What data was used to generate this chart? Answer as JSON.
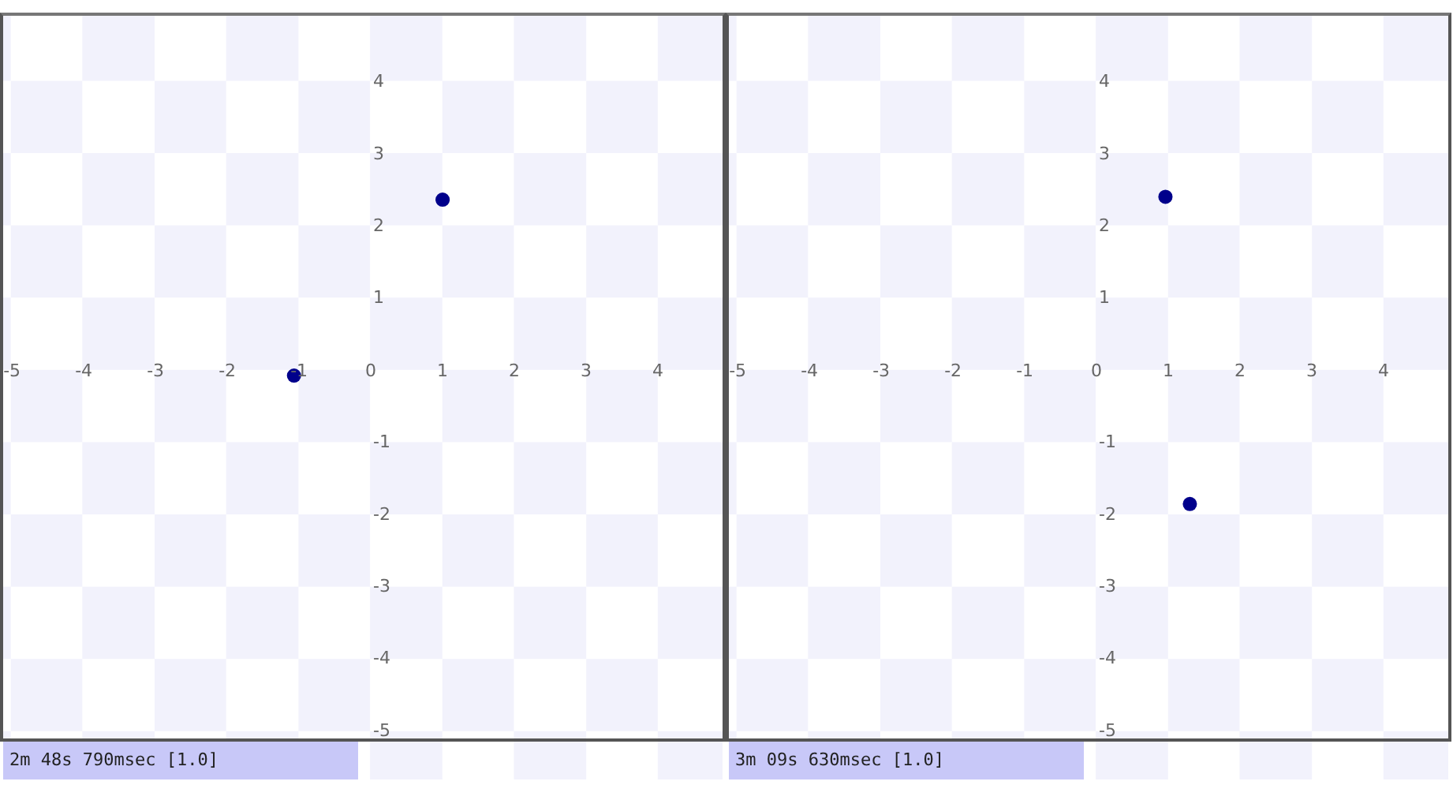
{
  "chart_data": [
    {
      "type": "scatter",
      "x": [
        1.0,
        -1.07
      ],
      "values": [
        2.35,
        -0.09
      ],
      "color": "#00008b",
      "xlim": [
        -5.1,
        4.9
      ],
      "ylim": [
        -5.1,
        4.9
      ],
      "xticks": [
        -5,
        -4,
        -3,
        -2,
        -1,
        0,
        1,
        2,
        3,
        4
      ],
      "yticks": [
        -5,
        -4,
        -3,
        -2,
        -1,
        1,
        2,
        3,
        4
      ],
      "annotations": [
        "2m 48s 790msec [1.0]"
      ]
    },
    {
      "type": "scatter",
      "x": [
        0.96,
        1.3
      ],
      "values": [
        2.39,
        -1.87
      ],
      "color": "#00008b",
      "xlim": [
        -5.1,
        4.9
      ],
      "ylim": [
        -5.1,
        4.9
      ],
      "xticks": [
        -5,
        -4,
        -3,
        -2,
        -1,
        0,
        1,
        2,
        3,
        4
      ],
      "yticks": [
        -5,
        -4,
        -3,
        -2,
        -1,
        1,
        2,
        3,
        4
      ],
      "annotations": [
        "3m 09s 630msec [1.0]"
      ]
    }
  ]
}
